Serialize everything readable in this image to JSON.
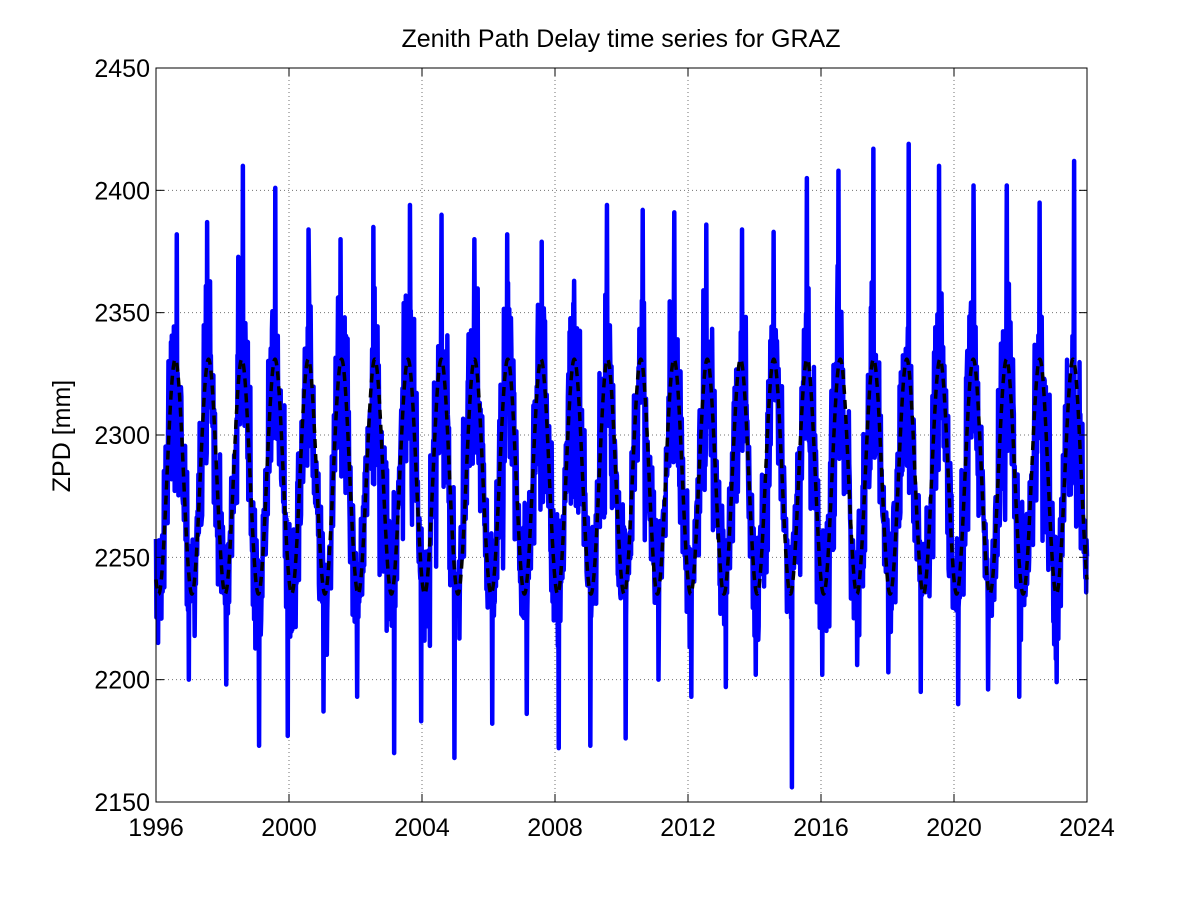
{
  "chart_data": {
    "type": "line",
    "title": "Zenith Path Delay time series for GRAZ",
    "xlabel": "",
    "ylabel": "ZPD [mm]",
    "xlim": [
      1996,
      2024
    ],
    "ylim": [
      2150,
      2450
    ],
    "xticks": [
      "1996",
      "2000",
      "2004",
      "2008",
      "2012",
      "2016",
      "2020",
      "2024"
    ],
    "yticks": [
      "2150",
      "2200",
      "2250",
      "2300",
      "2350",
      "2400",
      "2450"
    ],
    "grid": true,
    "series": [
      {
        "style": "solid",
        "color": "#0000ff",
        "annual_cycle": {
          "mean": 2280,
          "seasonal_amplitude": 40,
          "peak_fraction_of_year": 0.58,
          "variability_range": [
            2155,
            2420
          ]
        },
        "yearly_extremes": [
          {
            "year": 1996,
            "max": 2382,
            "min": 2175
          },
          {
            "year": 1997,
            "max": 2387,
            "min": 2200
          },
          {
            "year": 1998,
            "max": 2410,
            "min": 2198
          },
          {
            "year": 1999,
            "max": 2401,
            "min": 2173
          },
          {
            "year": 2000,
            "max": 2384,
            "min": 2177
          },
          {
            "year": 2001,
            "max": 2380,
            "min": 2187
          },
          {
            "year": 2002,
            "max": 2385,
            "min": 2193
          },
          {
            "year": 2003,
            "max": 2394,
            "min": 2170
          },
          {
            "year": 2004,
            "max": 2390,
            "min": 2183
          },
          {
            "year": 2005,
            "max": 2380,
            "min": 2168
          },
          {
            "year": 2006,
            "max": 2382,
            "min": 2182
          },
          {
            "year": 2007,
            "max": 2379,
            "min": 2186
          },
          {
            "year": 2008,
            "max": 2363,
            "min": 2172
          },
          {
            "year": 2009,
            "max": 2394,
            "min": 2173
          },
          {
            "year": 2010,
            "max": 2392,
            "min": 2176
          },
          {
            "year": 2011,
            "max": 2391,
            "min": 2200
          },
          {
            "year": 2012,
            "max": 2386,
            "min": 2193
          },
          {
            "year": 2013,
            "max": 2384,
            "min": 2197
          },
          {
            "year": 2014,
            "max": 2383,
            "min": 2202
          },
          {
            "year": 2015,
            "max": 2405,
            "min": 2156
          },
          {
            "year": 2016,
            "max": 2408,
            "min": 2202
          },
          {
            "year": 2017,
            "max": 2417,
            "min": 2206
          },
          {
            "year": 2018,
            "max": 2419,
            "min": 2203
          },
          {
            "year": 2019,
            "max": 2410,
            "min": 2195
          },
          {
            "year": 2020,
            "max": 2402,
            "min": 2190
          },
          {
            "year": 2021,
            "max": 2402,
            "min": 2196
          },
          {
            "year": 2022,
            "max": 2395,
            "min": 2193
          },
          {
            "year": 2023,
            "max": 2412,
            "min": 2199
          }
        ]
      },
      {
        "style": "dashed",
        "color": "#000000",
        "annual_cycle": {
          "mean": 2283,
          "seasonal_amplitude": 48,
          "peak_fraction_of_year": 0.58,
          "min": 2235,
          "max": 2331,
          "semiannual_step_near": 2300
        }
      }
    ]
  }
}
